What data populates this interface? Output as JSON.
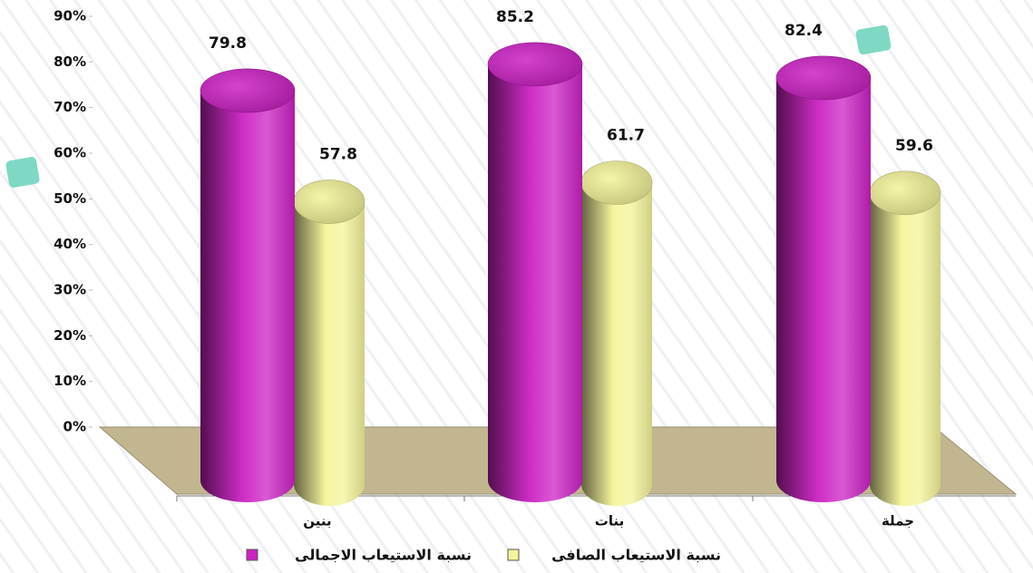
{
  "chart_data": {
    "type": "cylinder-bar",
    "categories": [
      "بنين",
      "بنات",
      "جملة"
    ],
    "series": [
      {
        "name": "نسبة الاستيعاب الاجمالى",
        "color": "#cc22c4",
        "values": [
          79.8,
          85.2,
          82.4
        ]
      },
      {
        "name": "نسبة الاستيعاب الصافى",
        "color": "#f4f49a",
        "values": [
          57.8,
          61.7,
          59.6
        ]
      }
    ],
    "ylim": [
      0,
      90
    ],
    "yticks": [
      {
        "value": 0,
        "label": "0%"
      },
      {
        "value": 10,
        "label": "10%"
      },
      {
        "value": 20,
        "label": "20%"
      },
      {
        "value": 30,
        "label": "30%"
      },
      {
        "value": 40,
        "label": "40%"
      },
      {
        "value": 50,
        "label": "50%"
      },
      {
        "value": 60,
        "label": "60%"
      },
      {
        "value": 70,
        "label": "70%"
      },
      {
        "value": 80,
        "label": "80%"
      },
      {
        "value": 90,
        "label": "90%"
      }
    ],
    "grid": false
  }
}
